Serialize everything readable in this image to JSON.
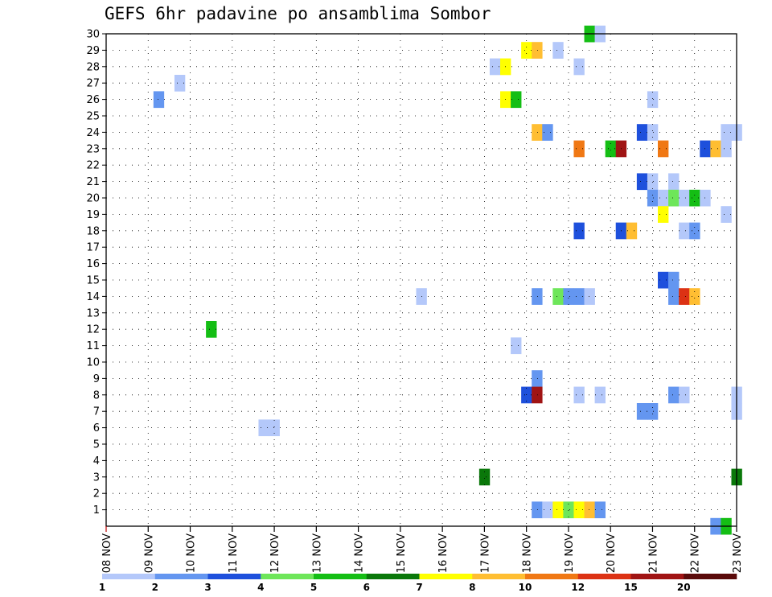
{
  "chart_data": {
    "type": "heatmap",
    "title": "GEFS 6hr padavine po ansamblima Sombor",
    "xlabel": "",
    "ylabel": "",
    "y_ticks": [
      "1",
      "2",
      "3",
      "4",
      "5",
      "6",
      "7",
      "8",
      "9",
      "10",
      "11",
      "12",
      "13",
      "14",
      "15",
      "16",
      "17",
      "18",
      "19",
      "20",
      "21",
      "22",
      "23",
      "24",
      "25",
      "26",
      "27",
      "28",
      "29",
      "30"
    ],
    "x_ticks": [
      {
        "day": 0,
        "label": "08 NOV"
      },
      {
        "day": 1,
        "label": "09 NOV"
      },
      {
        "day": 2,
        "label": "10 NOV"
      },
      {
        "day": 3,
        "label": "11 NOV"
      },
      {
        "day": 4,
        "label": "12 NOV"
      },
      {
        "day": 5,
        "label": "13 NOV"
      },
      {
        "day": 6,
        "label": "14 NOV"
      },
      {
        "day": 7,
        "label": "15 NOV"
      },
      {
        "day": 8,
        "label": "16 NOV"
      },
      {
        "day": 9,
        "label": "17 NOV"
      },
      {
        "day": 10,
        "label": "18 NOV"
      },
      {
        "day": 11,
        "label": "19 NOV"
      },
      {
        "day": 12,
        "label": "20 NOV"
      },
      {
        "day": 13,
        "label": "21 NOV"
      },
      {
        "day": 14,
        "label": "22 NOV"
      },
      {
        "day": 15,
        "label": "23 NOV"
      }
    ],
    "x_range_days": [
      0,
      15
    ],
    "y_range": [
      0,
      30
    ],
    "grid": true,
    "colorbar": {
      "colors": [
        "#b4c8fa",
        "#6496f0",
        "#1e50dc",
        "#6ee65a",
        "#14be14",
        "#0a780a",
        "#ffff00",
        "#ffbe32",
        "#f07814",
        "#dc3214",
        "#a01414",
        "#5a0a0a"
      ],
      "labels": [
        "1",
        "2",
        "3",
        "4",
        "5",
        "6",
        "7",
        "8",
        "10",
        "12",
        "15",
        "20"
      ]
    },
    "cells": [
      [
        30,
        11.5,
        4
      ],
      [
        30,
        11.75,
        0
      ],
      [
        29,
        10.0,
        6
      ],
      [
        29,
        10.25,
        7
      ],
      [
        29,
        10.75,
        0
      ],
      [
        28,
        9.25,
        0
      ],
      [
        28,
        9.5,
        6
      ],
      [
        28,
        11.25,
        0
      ],
      [
        27,
        1.75,
        0
      ],
      [
        26,
        1.25,
        1
      ],
      [
        26,
        9.5,
        6
      ],
      [
        26,
        9.75,
        4
      ],
      [
        26,
        13.0,
        0
      ],
      [
        24,
        10.25,
        7
      ],
      [
        24,
        10.5,
        1
      ],
      [
        24,
        12.75,
        2
      ],
      [
        24,
        13.0,
        0
      ],
      [
        24,
        14.75,
        0
      ],
      [
        24,
        15.0,
        0
      ],
      [
        23,
        11.25,
        8
      ],
      [
        23,
        12.0,
        4
      ],
      [
        23,
        12.25,
        10
      ],
      [
        23,
        13.25,
        8
      ],
      [
        23,
        14.25,
        2
      ],
      [
        23,
        14.5,
        7
      ],
      [
        23,
        14.75,
        0
      ],
      [
        21,
        12.75,
        2
      ],
      [
        21,
        13.0,
        0
      ],
      [
        21,
        13.5,
        0
      ],
      [
        20,
        13.0,
        1
      ],
      [
        20,
        13.25,
        0
      ],
      [
        20,
        13.5,
        3
      ],
      [
        20,
        13.75,
        0
      ],
      [
        20,
        14.0,
        4
      ],
      [
        20,
        14.25,
        0
      ],
      [
        19,
        13.25,
        6
      ],
      [
        19,
        14.75,
        0
      ],
      [
        18,
        11.25,
        2
      ],
      [
        18,
        12.25,
        2
      ],
      [
        18,
        12.5,
        7
      ],
      [
        18,
        13.75,
        0
      ],
      [
        18,
        14.0,
        1
      ],
      [
        15,
        13.25,
        2
      ],
      [
        15,
        13.5,
        1
      ],
      [
        14,
        7.5,
        0
      ],
      [
        14,
        10.25,
        1
      ],
      [
        14,
        10.75,
        3
      ],
      [
        14,
        11.0,
        1
      ],
      [
        14,
        11.25,
        1
      ],
      [
        14,
        11.5,
        0
      ],
      [
        14,
        13.5,
        1
      ],
      [
        14,
        13.75,
        9
      ],
      [
        14,
        14.0,
        7
      ],
      [
        12,
        2.5,
        4
      ],
      [
        11,
        9.75,
        0
      ],
      [
        9,
        10.25,
        1
      ],
      [
        8,
        10.0,
        2
      ],
      [
        8,
        10.25,
        10
      ],
      [
        8,
        11.25,
        0
      ],
      [
        8,
        11.75,
        0
      ],
      [
        8,
        13.5,
        1
      ],
      [
        8,
        13.75,
        0
      ],
      [
        8,
        15.0,
        0
      ],
      [
        7,
        12.75,
        1
      ],
      [
        7,
        13.0,
        1
      ],
      [
        7,
        15.0,
        0
      ],
      [
        6,
        3.75,
        0
      ],
      [
        6,
        4.0,
        0
      ],
      [
        3,
        9.0,
        5
      ],
      [
        3,
        15.0,
        5
      ],
      [
        1,
        10.25,
        1
      ],
      [
        1,
        10.5,
        0
      ],
      [
        1,
        10.75,
        6
      ],
      [
        1,
        11.0,
        3
      ],
      [
        1,
        11.25,
        6
      ],
      [
        1,
        11.5,
        7
      ],
      [
        1,
        11.75,
        1
      ],
      [
        0,
        14.5,
        1
      ],
      [
        0,
        14.75,
        4
      ]
    ]
  }
}
